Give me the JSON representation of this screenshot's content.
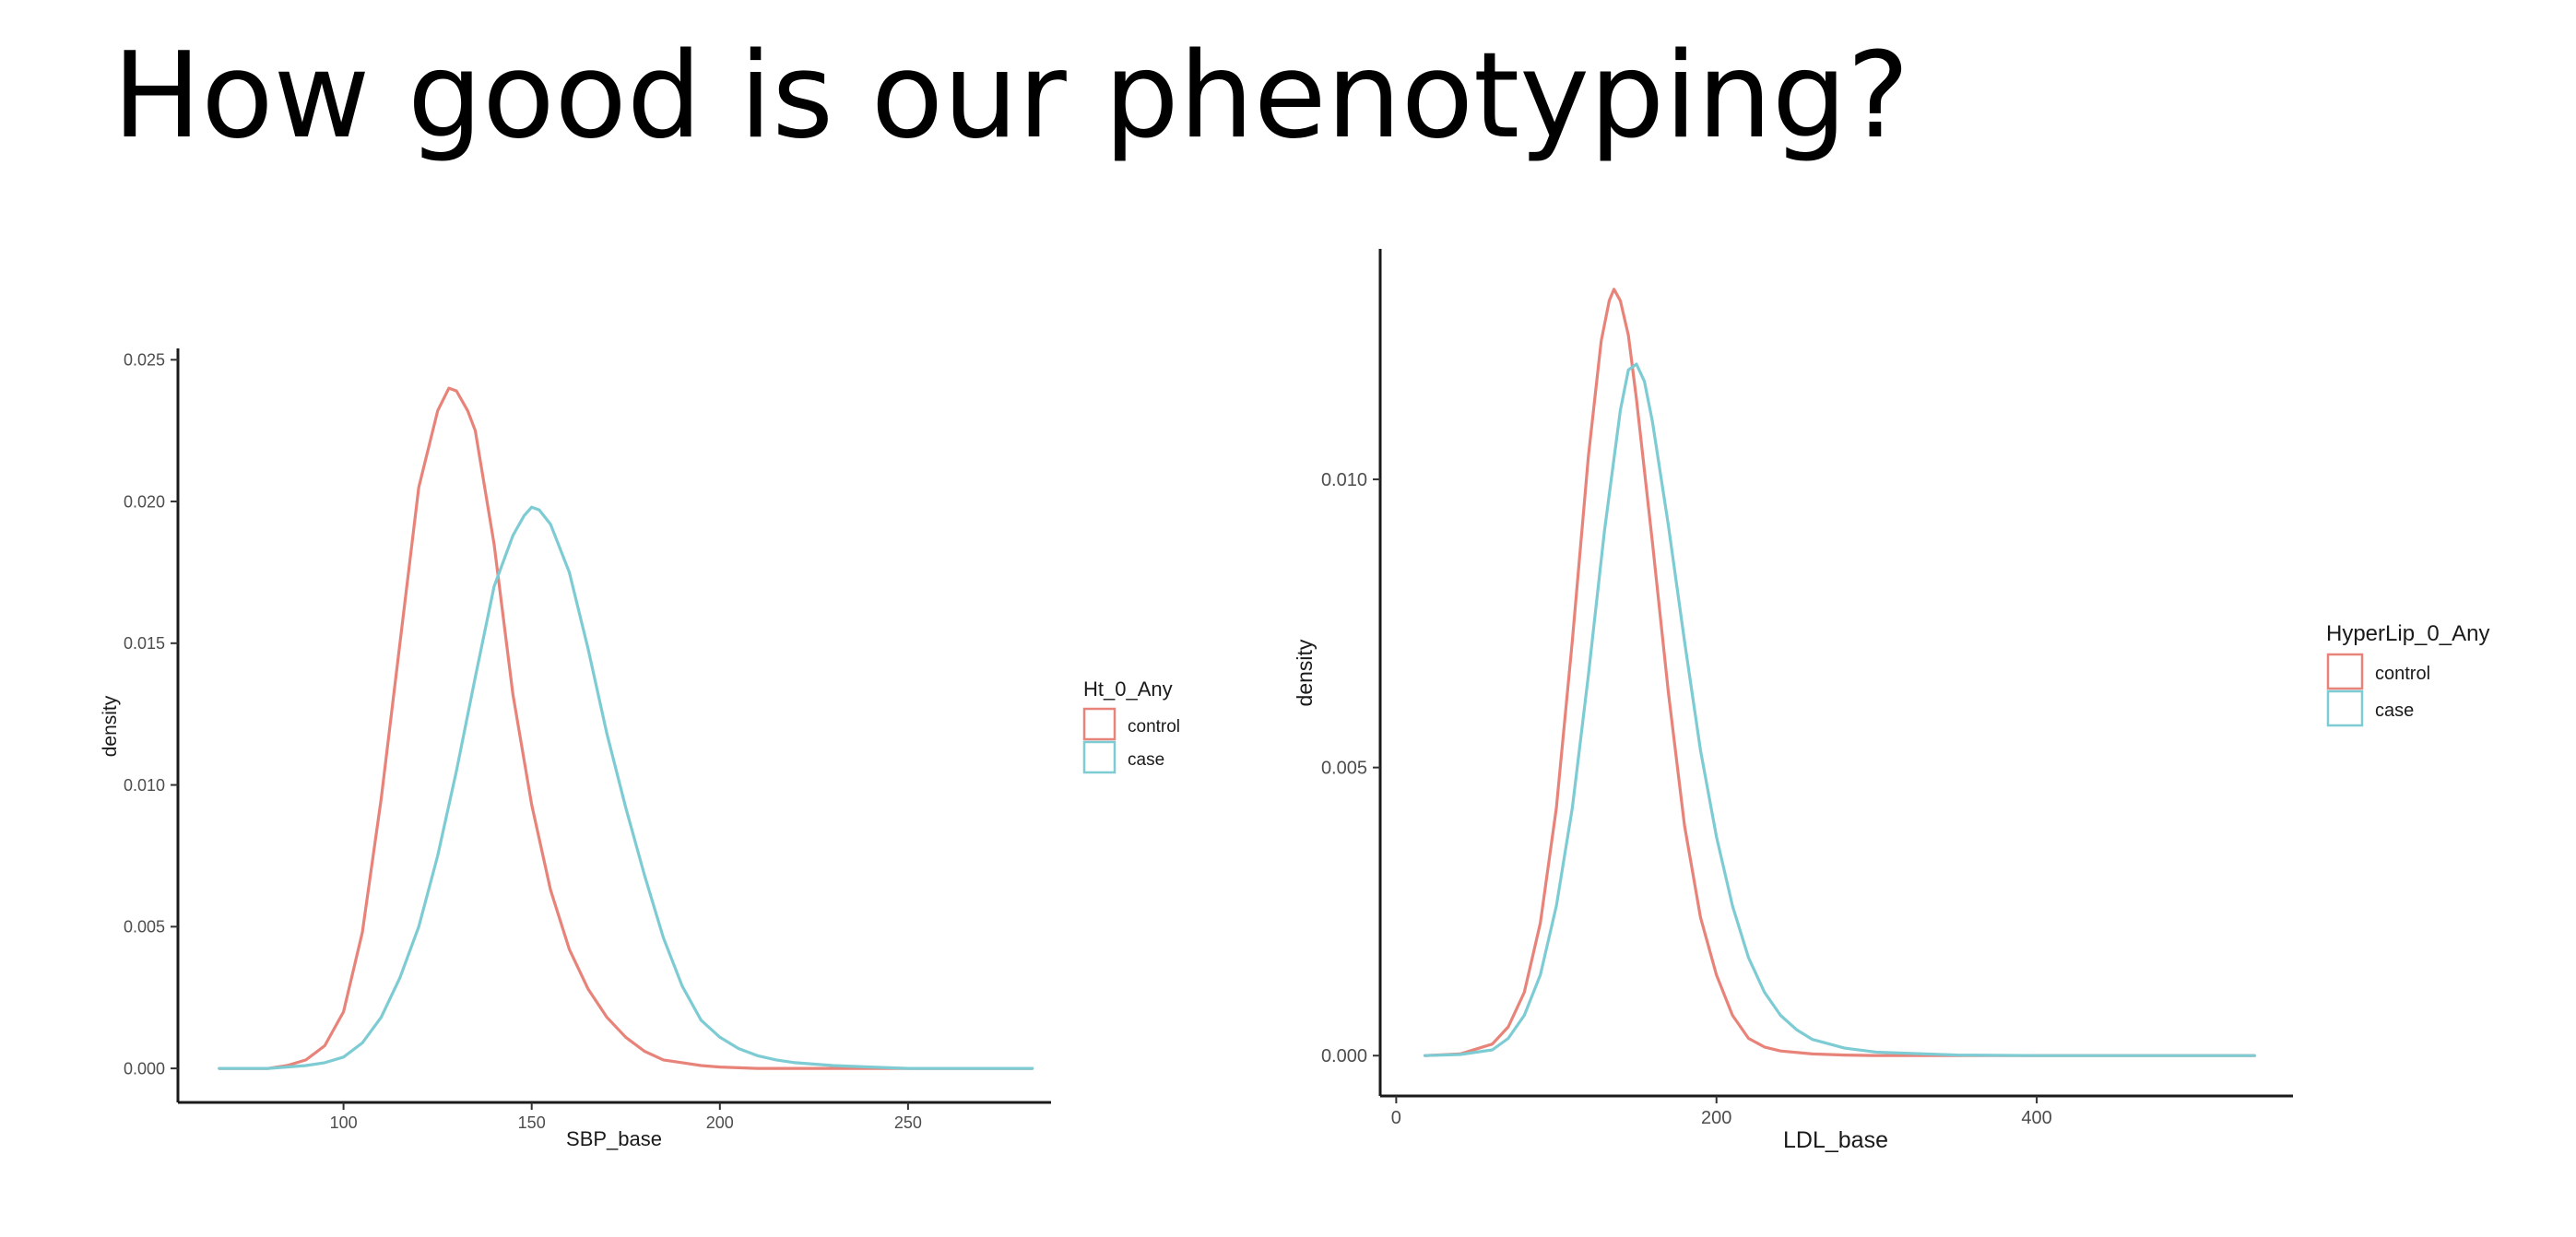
{
  "slide": {
    "title": "How good is our phenotyping?"
  },
  "colors": {
    "control": "#E8837A",
    "case": "#7DCBD3",
    "axis": "#1a1a1a"
  },
  "chart_data": [
    {
      "type": "line",
      "title": "",
      "xlabel": "SBP_base",
      "ylabel": "density",
      "xlim": [
        56,
        288
      ],
      "ylim": [
        -0.0012,
        0.0254
      ],
      "xticks": [
        100,
        150,
        200,
        250
      ],
      "yticks": [
        0.0,
        0.005,
        0.01,
        0.015,
        0.02,
        0.025
      ],
      "ytick_labels": [
        "0.000",
        "0.005",
        "0.010",
        "0.015",
        "0.020",
        "0.025"
      ],
      "grid": false,
      "legend": {
        "title": "Ht_0_Any",
        "position": "right",
        "entries": [
          "control",
          "case"
        ]
      },
      "series": [
        {
          "name": "control",
          "color": "#E8837A",
          "x": [
            67,
            80,
            85,
            90,
            95,
            100,
            105,
            110,
            115,
            120,
            125,
            128,
            130,
            133,
            135,
            140,
            145,
            150,
            155,
            160,
            165,
            170,
            175,
            180,
            185,
            190,
            195,
            200,
            210,
            220,
            240,
            260,
            283
          ],
          "y": [
            0.0,
            0.0,
            0.0001,
            0.0003,
            0.0008,
            0.002,
            0.0048,
            0.0095,
            0.015,
            0.0205,
            0.0232,
            0.024,
            0.0239,
            0.0232,
            0.0225,
            0.0185,
            0.0132,
            0.0093,
            0.0063,
            0.0042,
            0.0028,
            0.0018,
            0.0011,
            0.0006,
            0.0003,
            0.0002,
            0.0001,
            5e-05,
            0.0,
            0.0,
            0.0,
            0.0,
            0.0
          ]
        },
        {
          "name": "case",
          "color": "#7DCBD3",
          "x": [
            67,
            80,
            90,
            95,
            100,
            105,
            110,
            115,
            120,
            125,
            130,
            135,
            140,
            145,
            148,
            150,
            152,
            155,
            160,
            165,
            170,
            175,
            180,
            185,
            190,
            195,
            200,
            205,
            210,
            215,
            220,
            230,
            240,
            250,
            260,
            283
          ],
          "y": [
            0.0,
            0.0,
            0.0001,
            0.0002,
            0.0004,
            0.0009,
            0.0018,
            0.0032,
            0.005,
            0.0075,
            0.0105,
            0.0138,
            0.017,
            0.0188,
            0.0195,
            0.0198,
            0.0197,
            0.0192,
            0.0175,
            0.0148,
            0.0118,
            0.0092,
            0.0068,
            0.0046,
            0.0029,
            0.0017,
            0.0011,
            0.0007,
            0.00045,
            0.0003,
            0.0002,
            0.0001,
            5e-05,
            0.0,
            0.0,
            0.0
          ]
        }
      ]
    },
    {
      "type": "line",
      "title": "",
      "xlabel": "LDL_base",
      "ylabel": "density",
      "xlim": [
        -10,
        560
      ],
      "ylim": [
        -0.0007,
        0.014
      ],
      "xticks": [
        0,
        200,
        400
      ],
      "yticks": [
        0.0,
        0.005,
        0.01
      ],
      "ytick_labels": [
        "0.000",
        "0.005",
        "0.010"
      ],
      "grid": false,
      "legend": {
        "title": "HyperLip_0_Any",
        "position": "right",
        "entries": [
          "control",
          "case"
        ]
      },
      "series": [
        {
          "name": "control",
          "color": "#E8837A",
          "x": [
            18,
            40,
            60,
            70,
            80,
            90,
            100,
            110,
            120,
            128,
            133,
            136,
            140,
            145,
            150,
            160,
            170,
            180,
            190,
            200,
            210,
            220,
            230,
            240,
            260,
            280,
            300,
            350,
            400,
            536
          ],
          "y": [
            0.0,
            3e-05,
            0.0002,
            0.0005,
            0.0011,
            0.0023,
            0.0043,
            0.0072,
            0.0104,
            0.0124,
            0.0131,
            0.0133,
            0.0131,
            0.0125,
            0.0114,
            0.0089,
            0.0063,
            0.004,
            0.0024,
            0.0014,
            0.0007,
            0.0003,
            0.00015,
            8e-05,
            3e-05,
            1e-05,
            0.0,
            0.0,
            0.0,
            0.0
          ]
        },
        {
          "name": "case",
          "color": "#7DCBD3",
          "x": [
            18,
            40,
            60,
            70,
            80,
            90,
            100,
            110,
            120,
            130,
            140,
            145,
            150,
            155,
            160,
            170,
            180,
            190,
            200,
            210,
            220,
            230,
            240,
            250,
            260,
            280,
            300,
            350,
            400,
            536
          ],
          "y": [
            0.0,
            2e-05,
            0.0001,
            0.0003,
            0.0007,
            0.0014,
            0.0026,
            0.0043,
            0.0066,
            0.0091,
            0.0112,
            0.0119,
            0.012,
            0.0117,
            0.011,
            0.0092,
            0.0072,
            0.0053,
            0.0038,
            0.0026,
            0.0017,
            0.0011,
            0.0007,
            0.00045,
            0.00028,
            0.00013,
            6e-05,
            1e-05,
            0.0,
            0.0
          ]
        }
      ]
    }
  ]
}
